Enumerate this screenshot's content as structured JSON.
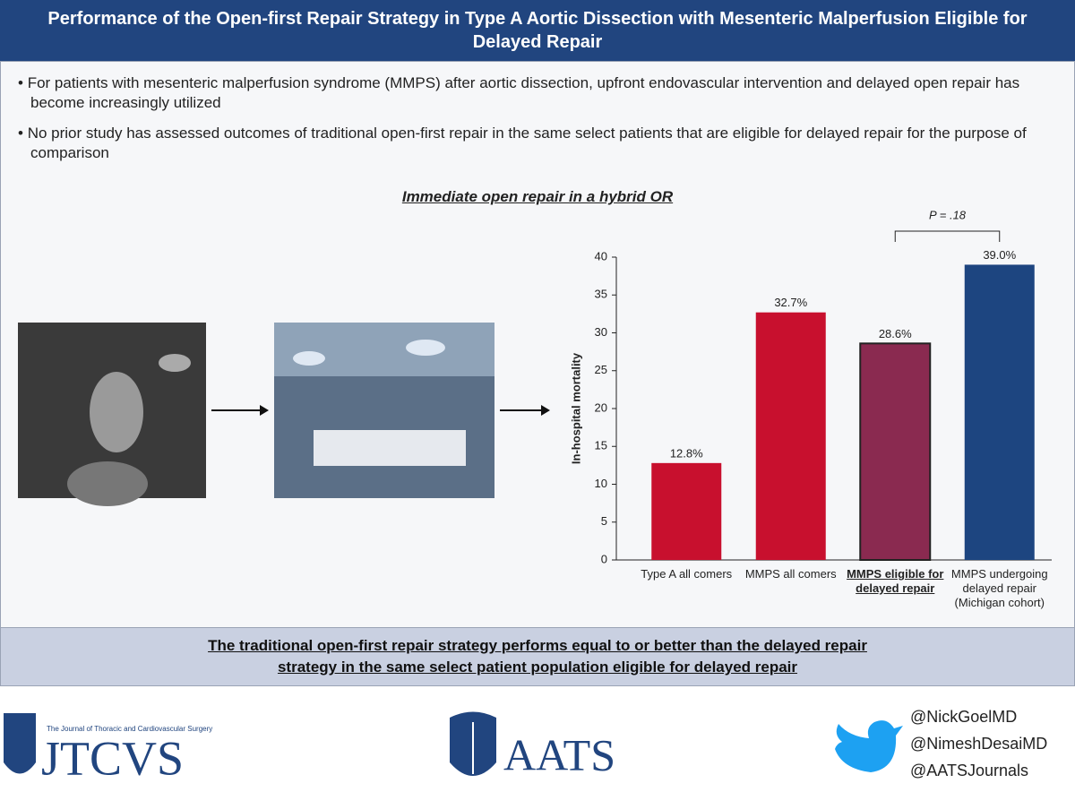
{
  "header": {
    "title": "Performance of the Open-first Repair Strategy in Type A Aortic Dissection with Mesenteric Malperfusion Eligible for Delayed Repair"
  },
  "bullets": [
    "For patients with mesenteric malperfusion syndrome (MMPS) after aortic dissection, upfront endovascular intervention and delayed open repair has become increasingly utilized",
    "No prior study has assessed outcomes of traditional open-first repair in the same select patients that are eligible for delayed repair for the purpose of comparison"
  ],
  "panel_title": "Immediate open repair in a hybrid OR",
  "chart_data": {
    "type": "bar",
    "y_label": "In-hospital mortality",
    "categories": [
      "Type A all comers",
      "MMPS all comers",
      "MMPS eligible for delayed repair",
      "MMPS undergoing delayed repair (Michigan cohort)"
    ],
    "emphasis": [
      false,
      false,
      true,
      false
    ],
    "values": [
      12.8,
      32.7,
      28.6,
      39.0
    ],
    "value_labels": [
      "12.8%",
      "32.7%",
      "28.6%",
      "39.0%"
    ],
    "colors": [
      "#c8102e",
      "#c8102e",
      "#8a2a50",
      "#1d4580"
    ],
    "ylim": [
      0,
      40
    ],
    "yticks": [
      0,
      5,
      10,
      15,
      20,
      25,
      30,
      35,
      40
    ],
    "grid": false,
    "annotation": {
      "text": "P = .18",
      "between": [
        2,
        3
      ]
    }
  },
  "conclusion": "The traditional open-first repair strategy performs equal to or better than the delayed repair strategy in the same select patient population eligible for delayed repair",
  "footer": {
    "journal": "JTCVS",
    "journal_full": "The Journal of Thoracic and Cardiovascular Surgery",
    "society": "AATS",
    "handles": [
      "@NickGoelMD",
      "@NimeshDesaiMD",
      "@AATSJournals"
    ]
  }
}
